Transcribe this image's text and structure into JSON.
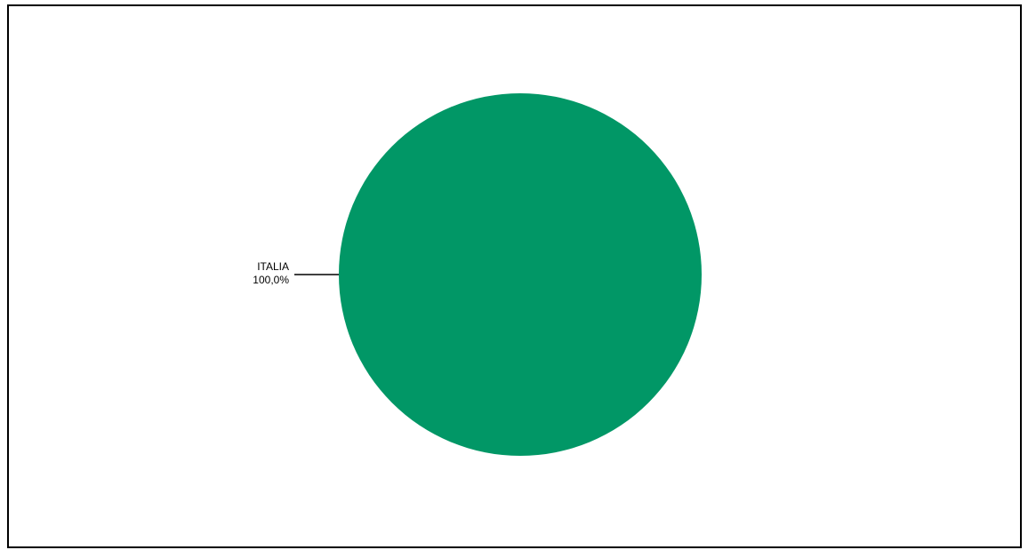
{
  "chart_data": {
    "type": "pie",
    "title": "",
    "slices": [
      {
        "label": "ITALIA",
        "value": 100.0,
        "value_label": "100,0%",
        "color": "#019766"
      }
    ],
    "legend": "none",
    "data_labels": "outside-left-with-leader-line"
  }
}
